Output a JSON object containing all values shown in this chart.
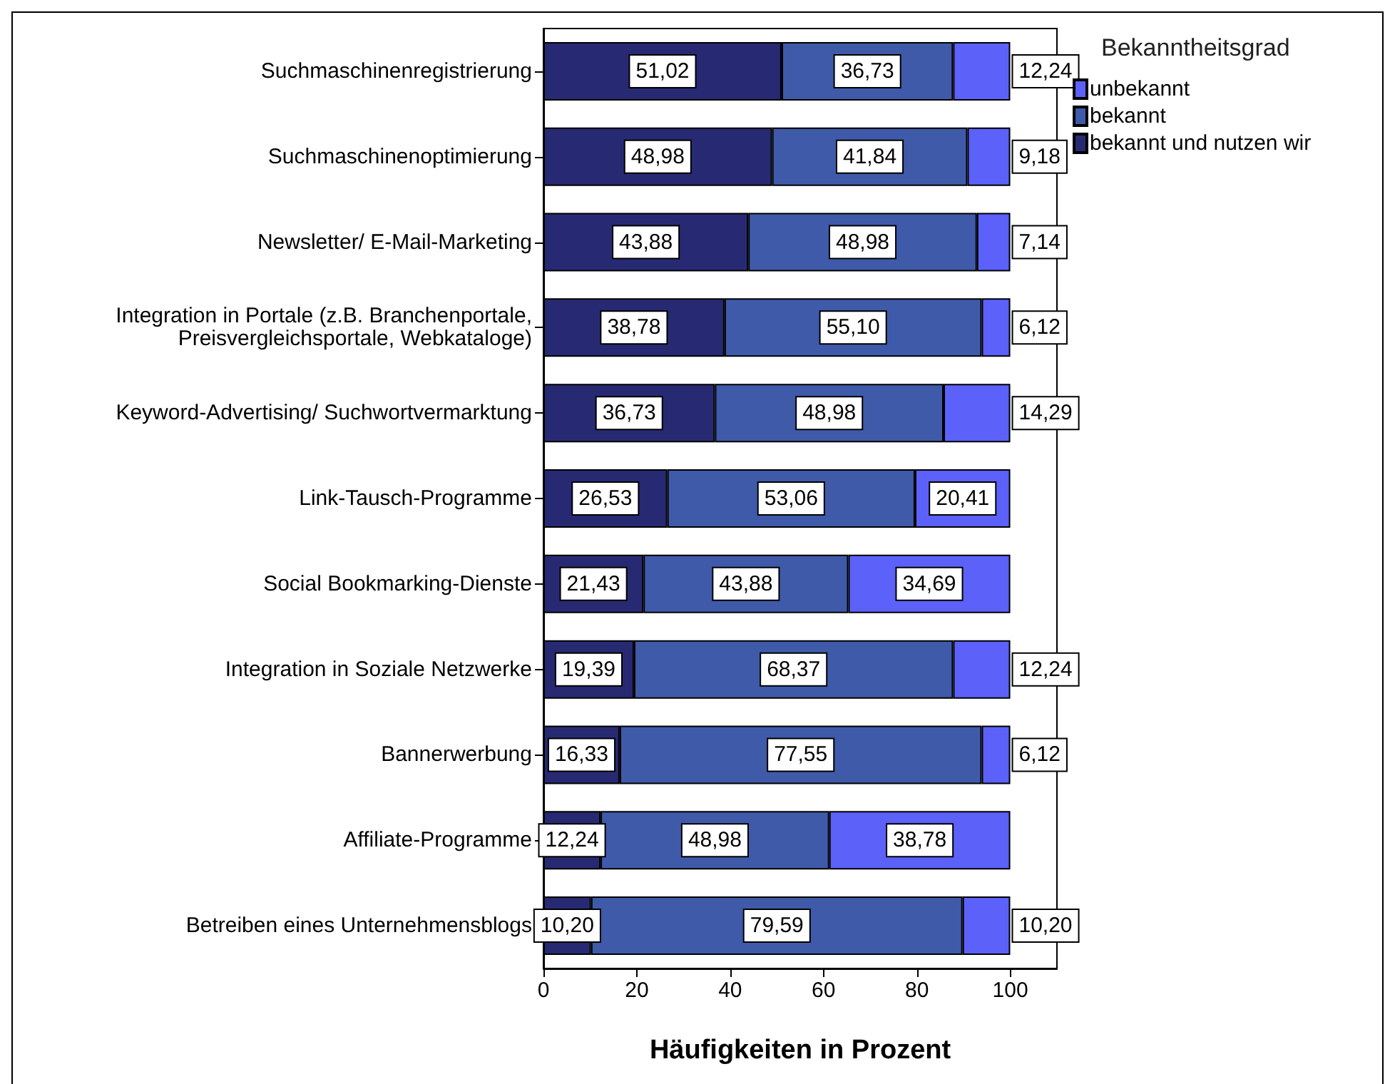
{
  "chart_data": {
    "type": "bar",
    "orientation": "horizontal",
    "stacked": true,
    "xlabel": "Häufigkeiten in Prozent",
    "legend_title": "Bekanntheitsgrad",
    "legend": "top right",
    "categories": [
      "Suchmaschinenregistrierung",
      "Suchmaschinenoptimierung",
      "Newsletter/ E-Mail-Marketing",
      "Integration in Portale (z.B. Branchenportale,\nPreisvergleichsportale, Webkataloge)",
      "Keyword-Advertising/ Suchwortvermarktung",
      "Link-Tausch-Programme",
      "Social Bookmarking-Dienste",
      "Integration in Soziale Netzwerke",
      "Bannerwerbung",
      "Affiliate-Programme",
      "Betreiben eines Unternehmensblogs"
    ],
    "xlim": [
      0,
      110
    ],
    "xticks": [
      0,
      20,
      40,
      60,
      80,
      100
    ],
    "series": [
      {
        "name": "bekannt und nutzen wir",
        "color": "#272a72",
        "values": [
          51.02,
          48.98,
          43.88,
          38.78,
          36.73,
          26.53,
          21.43,
          19.39,
          16.33,
          12.24,
          10.2
        ],
        "value_labels": [
          "51,02",
          "48,98",
          "43,88",
          "38,78",
          "36,73",
          "26,53",
          "21,43",
          "19,39",
          "16,33",
          "12,24",
          "10,20"
        ]
      },
      {
        "name": "bekannt",
        "color": "#3f5aa9",
        "values": [
          36.73,
          41.84,
          48.98,
          55.1,
          48.98,
          53.06,
          43.88,
          68.37,
          77.55,
          48.98,
          79.59
        ],
        "value_labels": [
          "36,73",
          "41,84",
          "48,98",
          "55,10",
          "48,98",
          "53,06",
          "43,88",
          "68,37",
          "77,55",
          "48,98",
          "79,59"
        ]
      },
      {
        "name": "unbekannt",
        "color": "#5c61f9",
        "values": [
          12.24,
          9.18,
          7.14,
          6.12,
          14.29,
          20.41,
          34.69,
          12.24,
          6.12,
          38.78,
          10.2
        ],
        "value_labels": [
          "12,24",
          "9,18",
          "7,14",
          "6,12",
          "14,29",
          "20,41",
          "34,69",
          "12,24",
          "6,12",
          "38,78",
          "10,20"
        ]
      }
    ]
  }
}
